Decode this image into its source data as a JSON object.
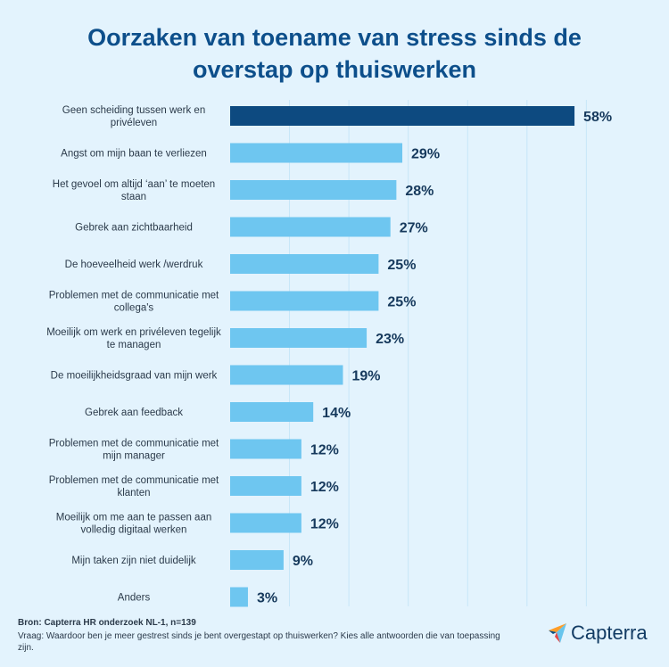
{
  "header": {
    "title_line1": "Oorzaken van toename van stress sinds de",
    "title_line2": "overstap op thuiswerken"
  },
  "chart_data": {
    "type": "bar",
    "orientation": "horizontal",
    "xlim": [
      0,
      60
    ],
    "grid": true,
    "unit": "%",
    "categories": [
      [
        "Geen scheiding tussen werk en",
        "privéleven"
      ],
      [
        "Angst om mijn baan te verliezen"
      ],
      [
        "Het gevoel om altijd ‘aan’ te moeten",
        "staan"
      ],
      [
        "Gebrek aan zichtbaarheid"
      ],
      [
        "De hoeveelheid werk /werdruk"
      ],
      [
        "Problemen met de communicatie met",
        "collega's"
      ],
      [
        "Moeilijk om werk en privéleven tegelijk",
        "te managen"
      ],
      [
        "De moeilijkheidsgraad van mijn werk"
      ],
      [
        "Gebrek aan feedback"
      ],
      [
        "Problemen met de communicatie met",
        "mijn manager"
      ],
      [
        "Problemen met de communicatie met",
        "klanten"
      ],
      [
        "Moeilijk om me aan te passen aan",
        "volledig digitaal werken"
      ],
      [
        "Mijn taken zijn niet duidelijk"
      ],
      [
        "Anders"
      ]
    ],
    "values": [
      58,
      29,
      28,
      27,
      25,
      25,
      23,
      19,
      14,
      12,
      12,
      12,
      9,
      3
    ],
    "value_labels": [
      "58%",
      "29%",
      "28%",
      "27%",
      "25%",
      "25%",
      "23%",
      "19%",
      "14%",
      "12%",
      "12%",
      "12%",
      "9%",
      "3%"
    ],
    "highlight_color": "#0d4a80",
    "bar_color": "#6ec6f0"
  },
  "footer": {
    "source": "Bron: Capterra HR onderzoek NL-1, n=139",
    "question": "Vraag: Waardoor ben je meer gestrest sinds je bent overgestapt op thuiswerken? Kies alle antwoorden die van toepassing zijn."
  },
  "logo": {
    "text": "Capterra",
    "icon": "capterra-arrow-icon"
  }
}
